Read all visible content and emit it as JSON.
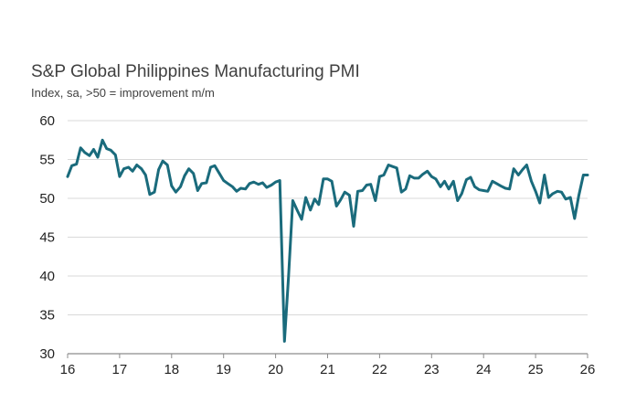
{
  "chart_data": {
    "type": "line",
    "title": "S&P Global Philippines Manufacturing PMI",
    "subtitle": "Index, sa, >50 = improvement m/m",
    "xlabel": "",
    "ylabel": "",
    "xlim": [
      2016.0,
      2026.0
    ],
    "ylim": [
      30,
      60
    ],
    "yticks": [
      "30",
      "35",
      "40",
      "45",
      "50",
      "55",
      "60"
    ],
    "xticks": [
      "16",
      "17",
      "18",
      "19",
      "20",
      "21",
      "22",
      "23",
      "24",
      "25",
      "26"
    ],
    "grid": "horizontal",
    "legend": "none",
    "colors": {
      "line": "#1a6b7c",
      "grid": "#d9d9d9",
      "text": "#404040"
    },
    "series": [
      {
        "x": [
          2016.0,
          2016.08,
          2016.17,
          2016.25,
          2016.33,
          2016.42,
          2016.5,
          2016.58,
          2016.67,
          2016.75,
          2016.83,
          2016.92,
          2017.0,
          2017.08,
          2017.17,
          2017.25,
          2017.33,
          2017.42,
          2017.5,
          2017.58,
          2017.67,
          2017.75,
          2017.83,
          2017.92,
          2018.0,
          2018.08,
          2018.17,
          2018.25,
          2018.33,
          2018.42,
          2018.5,
          2018.58,
          2018.67,
          2018.75,
          2018.83,
          2018.92,
          2019.0,
          2019.08,
          2019.17,
          2019.25,
          2019.33,
          2019.42,
          2019.5,
          2019.58,
          2019.67,
          2019.75,
          2019.83,
          2019.92,
          2020.0,
          2020.08,
          2020.17,
          2020.25,
          2020.33,
          2020.42,
          2020.5,
          2020.58,
          2020.67,
          2020.75,
          2020.83,
          2020.92,
          2021.0,
          2021.08,
          2021.17,
          2021.25,
          2021.33,
          2021.42,
          2021.5,
          2021.58,
          2021.67,
          2021.75,
          2021.83,
          2021.92,
          2022.0,
          2022.08,
          2022.17,
          2022.25,
          2022.33,
          2022.42,
          2022.5,
          2022.58,
          2022.67,
          2022.75,
          2022.83,
          2022.92,
          2023.0,
          2023.08,
          2023.17,
          2023.25,
          2023.33,
          2023.42,
          2023.5,
          2023.58,
          2023.67,
          2023.75,
          2023.83,
          2023.92,
          2024.0,
          2024.08,
          2024.17,
          2024.25,
          2024.33,
          2024.42,
          2024.5,
          2024.58,
          2024.67,
          2024.75,
          2024.83,
          2024.92,
          2025.0,
          2025.08,
          2025.17,
          2025.25,
          2025.33,
          2025.42,
          2025.5,
          2025.58,
          2025.67,
          2025.75,
          2025.83,
          2025.92,
          2026.0
        ],
        "values": [
          52.8,
          54.2,
          54.4,
          56.5,
          55.9,
          55.5,
          56.3,
          55.3,
          57.5,
          56.4,
          56.2,
          55.6,
          52.8,
          53.8,
          54.0,
          53.5,
          54.3,
          53.8,
          53.0,
          50.5,
          50.8,
          53.7,
          54.8,
          54.3,
          51.6,
          50.8,
          51.5,
          52.9,
          53.8,
          53.2,
          51.0,
          51.9,
          52.0,
          54.0,
          54.2,
          53.2,
          52.3,
          51.9,
          51.5,
          50.9,
          51.3,
          51.2,
          51.9,
          52.1,
          51.8,
          52.0,
          51.4,
          51.7,
          52.1,
          52.3,
          31.6,
          40.0,
          49.7,
          48.4,
          47.3,
          50.1,
          48.5,
          49.9,
          49.2,
          52.5,
          52.5,
          52.2,
          49.0,
          49.8,
          50.8,
          50.4,
          46.4,
          50.9,
          51.0,
          51.7,
          51.8,
          49.7,
          52.8,
          53.0,
          54.3,
          54.1,
          53.9,
          50.8,
          51.2,
          52.9,
          52.6,
          52.6,
          53.1,
          53.5,
          52.8,
          52.5,
          51.5,
          52.2,
          51.2,
          52.2,
          49.7,
          50.6,
          52.4,
          52.7,
          51.5,
          51.1,
          51.0,
          50.9,
          52.2,
          51.9,
          51.6,
          51.3,
          51.2,
          53.8,
          53.0,
          53.7,
          54.3,
          52.2,
          50.9,
          49.4,
          53.0,
          50.1,
          50.6,
          50.9,
          50.8,
          49.9,
          50.1,
          47.4,
          50.3,
          53.0,
          53.0
        ]
      }
    ]
  }
}
